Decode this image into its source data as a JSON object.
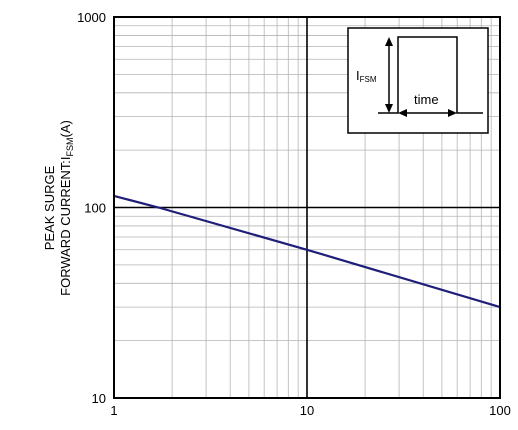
{
  "chart_data": {
    "type": "line",
    "xscale": "log",
    "yscale": "log",
    "xlim": [
      1,
      100
    ],
    "ylim": [
      10,
      1000
    ],
    "x_ticks": [
      "1",
      "10",
      "100"
    ],
    "y_ticks": [
      "10",
      "100",
      "1000"
    ],
    "grid": true,
    "ylabel_line1": "PEAK SURGE",
    "ylabel_line2_main": "FORWARD CURRENT:I",
    "ylabel_line2_sub": "FSM",
    "ylabel_line2_unit": "(A)",
    "series": [
      {
        "color": "#1f1f7a",
        "x": [
          1,
          1.7,
          10,
          100
        ],
        "y": [
          115,
          100,
          60,
          30
        ]
      }
    ],
    "inset": {
      "label_main": "I",
      "label_sub": "FSM",
      "time_label": "time"
    }
  }
}
